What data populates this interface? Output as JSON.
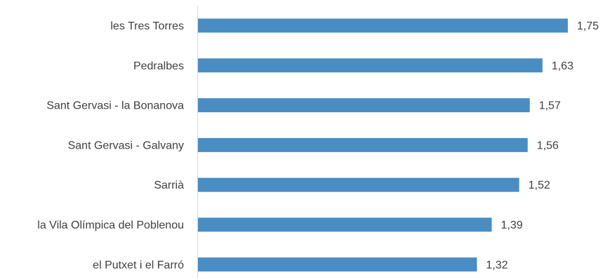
{
  "chart_data": {
    "type": "bar",
    "orientation": "horizontal",
    "categories": [
      "les Tres Torres",
      "Pedralbes",
      "Sant Gervasi - la Bonanova",
      "Sant Gervasi - Galvany",
      "Sarrià",
      "la Vila Olímpica del Poblenou",
      "el Putxet i el Farró"
    ],
    "values": [
      1.75,
      1.63,
      1.57,
      1.56,
      1.52,
      1.39,
      1.32
    ],
    "value_labels": [
      "1,75",
      "1,63",
      "1,57",
      "1,56",
      "1,52",
      "1,39",
      "1,32"
    ],
    "title": "",
    "xlabel": "",
    "ylabel": "",
    "xlim": [
      0,
      1.86
    ],
    "grid": false,
    "legend": "none",
    "bar_color": "#4A8DC3",
    "axis_color": "#D9D9D9",
    "text_color": "#404040"
  }
}
